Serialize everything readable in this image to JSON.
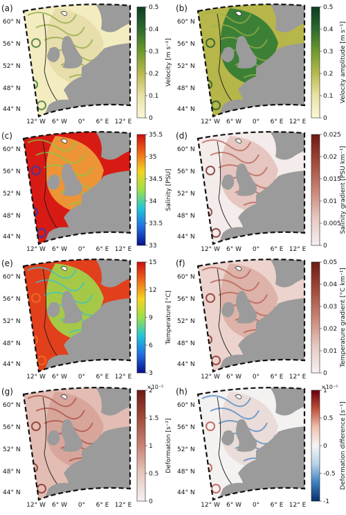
{
  "chart_data": [
    {
      "panel": "(a)",
      "type": "heatmap",
      "colorbar": {
        "label": "Velocity [m s⁻¹]",
        "ticks": [
          "0.5",
          "0.4",
          "0.3",
          "0.2",
          "0.1",
          "0"
        ],
        "stops": [
          "#fbf7d9",
          "#e9e2a4",
          "#b9b94f",
          "#6f9a2c",
          "#2c6a2e",
          "#0e3d20"
        ],
        "range": [
          0,
          0.5
        ]
      },
      "lat_labels": [
        "60° N",
        "56° N",
        "52° N",
        "48° N",
        "44° N"
      ],
      "lon_labels": [
        "12° W",
        "6° W",
        "0°",
        "6° E",
        "12° E"
      ],
      "field": {
        "base": "#f3ecc0",
        "shelf": "#e5ddaa",
        "accent": "#8aa53a",
        "deep": "#2f6d2a"
      }
    },
    {
      "panel": "(b)",
      "type": "heatmap",
      "colorbar": {
        "label": "Velocity amplitude [m s⁻¹]",
        "ticks": [
          "0.5",
          "0.4",
          "0.3",
          "0.2",
          "0.1",
          "0"
        ],
        "stops": [
          "#fbf7d9",
          "#e9e2a4",
          "#b9b94f",
          "#6f9a2c",
          "#2c6a2e",
          "#0e3d20"
        ],
        "range": [
          0,
          0.5
        ]
      },
      "lat_labels": [
        "60° N",
        "56° N",
        "52° N",
        "48° N",
        "44° N"
      ],
      "lon_labels": [
        "12° W",
        "6° W",
        "0°",
        "6° E",
        "12° E"
      ],
      "field": {
        "base": "#b6b64a",
        "shelf": "#2f7a34",
        "accent": "#9fb24a",
        "deep": "#14502a"
      }
    },
    {
      "panel": "(c)",
      "type": "heatmap",
      "colorbar": {
        "label": "Salinity [PSU]",
        "ticks": [
          "35.5",
          "35",
          "34.5",
          "34",
          "33.5",
          "33"
        ],
        "stops": [
          "#0a0f8a",
          "#1f6fe0",
          "#22c6d8",
          "#9ce04a",
          "#f4d41f",
          "#f06a1a",
          "#cc1010"
        ],
        "range": [
          32.8,
          35.8
        ]
      },
      "lat_labels": [
        "60° N",
        "56° N",
        "52° N",
        "48° N",
        "44° N"
      ],
      "lon_labels": [
        "12° W",
        "6° W",
        "0°",
        "6° E",
        "12° E"
      ],
      "field": {
        "base": "#d81a14",
        "shelf": "#f0a23a",
        "accent": "#7fd04a",
        "deep": "#1340c8"
      }
    },
    {
      "panel": "(d)",
      "type": "heatmap",
      "colorbar": {
        "label": "Salinity gradient [PSU km⁻¹]",
        "ticks": [
          "0.025",
          "0.02",
          "0.015",
          "0.01",
          "0.005",
          "0"
        ],
        "stops": [
          "#f5f1f1",
          "#e7c7bf",
          "#c98374",
          "#a24a3a",
          "#6e1a14"
        ],
        "range": [
          0,
          0.025
        ]
      },
      "lat_labels": [
        "60° N",
        "56° N",
        "52° N",
        "48° N",
        "44° N"
      ],
      "lon_labels": [
        "12° W",
        "6° W",
        "0°",
        "6° E",
        "12° E"
      ],
      "field": {
        "base": "#f4ecea",
        "shelf": "#e3c2bb",
        "accent": "#b25a49",
        "deep": "#6f1b15"
      }
    },
    {
      "panel": "(e)",
      "type": "heatmap",
      "colorbar": {
        "label": "Temperature [°C]",
        "ticks": [
          "15",
          "12",
          "9",
          "6",
          "3"
        ],
        "stops": [
          "#0a0f8a",
          "#1f6fe0",
          "#22c6d8",
          "#9ce04a",
          "#f4d41f",
          "#f06a1a",
          "#cc1010"
        ],
        "range": [
          3,
          15
        ]
      },
      "lat_labels": [
        "60° N",
        "56° N",
        "52° N",
        "48° N",
        "44° N"
      ],
      "lon_labels": [
        "12° W",
        "6° W",
        "0°",
        "6° E",
        "12° E"
      ],
      "field": {
        "base": "#e2401c",
        "shelf": "#9ed84c",
        "accent": "#33c1d9",
        "deep": "#ed7a1f"
      }
    },
    {
      "panel": "(f)",
      "type": "heatmap",
      "colorbar": {
        "label": "Temperature gradient [°C km⁻¹]",
        "ticks": [
          "0.05",
          "0.04",
          "0.03",
          "0.02",
          "0.01",
          "0"
        ],
        "stops": [
          "#f5f1f1",
          "#e7c7bf",
          "#c98374",
          "#a24a3a",
          "#6e1a14"
        ],
        "range": [
          0,
          0.05
        ]
      },
      "lat_labels": [
        "60° N",
        "56° N",
        "52° N",
        "48° N",
        "44° N"
      ],
      "lon_labels": [
        "12° W",
        "6° W",
        "0°",
        "6° E",
        "12° E"
      ],
      "field": {
        "base": "#ecd3cd",
        "shelf": "#dcaea4",
        "accent": "#b0574a",
        "deep": "#7a2218"
      }
    },
    {
      "panel": "(g)",
      "type": "heatmap",
      "colorbar": {
        "label": "Deformation [s⁻¹]",
        "exponent": "×10⁻⁵",
        "ticks": [
          "2",
          "1.5",
          "1",
          "0.5",
          "0"
        ],
        "stops": [
          "#f5f1f1",
          "#e7c7bf",
          "#c98374",
          "#a24a3a",
          "#6e1a14"
        ],
        "range": [
          0,
          2
        ]
      },
      "lat_labels": [
        "60° N",
        "56° N",
        "52° N",
        "48° N",
        "44° N"
      ],
      "lon_labels": [
        "12° W",
        "6° W",
        "0°",
        "6° E",
        "12° E"
      ],
      "field": {
        "base": "#e3bdb3",
        "shelf": "#d6a298",
        "accent": "#a5493a",
        "deep": "#7a2218"
      }
    },
    {
      "panel": "(h)",
      "type": "heatmap",
      "colorbar": {
        "label": "Deformation difference [s⁻¹]",
        "exponent": "×10⁻⁵",
        "ticks": [
          "1",
          "0.5",
          "0",
          "-0.5",
          "-1"
        ],
        "stops": [
          "#08306b",
          "#3f7fbf",
          "#b6d3e8",
          "#f5f5f5",
          "#f0bfae",
          "#c0503a",
          "#67000d"
        ],
        "range": [
          -1,
          1
        ]
      },
      "lat_labels": [
        "60° N",
        "56° N",
        "52° N",
        "48° N",
        "44° N"
      ],
      "lon_labels": [
        "12° W",
        "6° W",
        "0°",
        "6° E",
        "12° E"
      ],
      "field": {
        "base": "#f4f1f1",
        "shelf": "#e8d9d6",
        "accent": "#3f7fbf",
        "deep": "#b24232"
      }
    }
  ]
}
